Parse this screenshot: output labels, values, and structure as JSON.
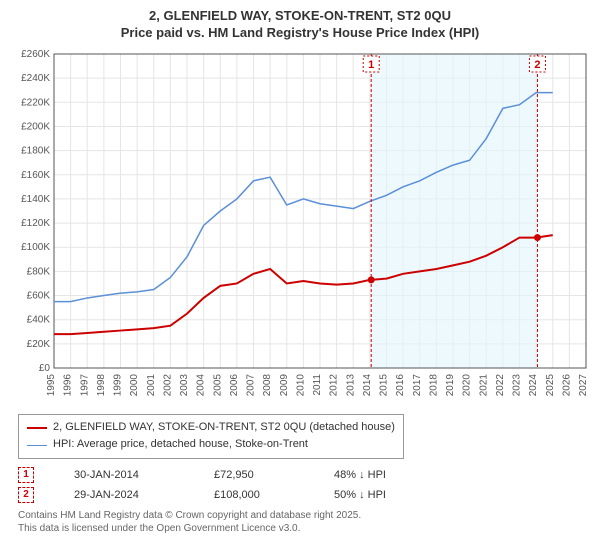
{
  "title_line1": "2, GLENFIELD WAY, STOKE-ON-TRENT, ST2 0QU",
  "title_line2": "Price paid vs. HM Land Registry's House Price Index (HPI)",
  "chart": {
    "background_color": "#ffffff",
    "shaded_color": "#E3F5FE",
    "grid_color": "#e5e5e5",
    "axis_color": "#555555",
    "ylim": [
      0,
      260000
    ],
    "ytick_step": 20000,
    "ytick_prefix": "£",
    "ytick_suffix": "K",
    "xlim": [
      1995,
      2027
    ],
    "xtick_step": 1,
    "series": {
      "price_paid": {
        "label": "2, GLENFIELD WAY, STOKE-ON-TRENT, ST2 0QU (detached house)",
        "color": "#cc0000",
        "line_width": 2,
        "data": [
          [
            1995,
            28000
          ],
          [
            1996,
            28000
          ],
          [
            1997,
            29000
          ],
          [
            1998,
            30000
          ],
          [
            1999,
            31000
          ],
          [
            2000,
            32000
          ],
          [
            2001,
            33000
          ],
          [
            2002,
            35000
          ],
          [
            2003,
            45000
          ],
          [
            2004,
            58000
          ],
          [
            2005,
            68000
          ],
          [
            2006,
            70000
          ],
          [
            2007,
            78000
          ],
          [
            2008,
            82000
          ],
          [
            2009,
            70000
          ],
          [
            2010,
            72000
          ],
          [
            2011,
            70000
          ],
          [
            2012,
            69000
          ],
          [
            2013,
            70000
          ],
          [
            2014,
            72950
          ],
          [
            2015,
            74000
          ],
          [
            2016,
            78000
          ],
          [
            2017,
            80000
          ],
          [
            2018,
            82000
          ],
          [
            2019,
            85000
          ],
          [
            2020,
            88000
          ],
          [
            2021,
            93000
          ],
          [
            2022,
            100000
          ],
          [
            2023,
            108000
          ],
          [
            2024,
            108000
          ],
          [
            2025,
            110000
          ]
        ]
      },
      "hpi": {
        "label": "HPI: Average price, detached house, Stoke-on-Trent",
        "color": "#5b8fd6",
        "line_width": 1.5,
        "data": [
          [
            1995,
            55000
          ],
          [
            1996,
            55000
          ],
          [
            1997,
            58000
          ],
          [
            1998,
            60000
          ],
          [
            1999,
            62000
          ],
          [
            2000,
            63000
          ],
          [
            2001,
            65000
          ],
          [
            2002,
            75000
          ],
          [
            2003,
            92000
          ],
          [
            2004,
            118000
          ],
          [
            2005,
            130000
          ],
          [
            2006,
            140000
          ],
          [
            2007,
            155000
          ],
          [
            2008,
            158000
          ],
          [
            2009,
            135000
          ],
          [
            2010,
            140000
          ],
          [
            2011,
            136000
          ],
          [
            2012,
            134000
          ],
          [
            2013,
            132000
          ],
          [
            2014,
            138000
          ],
          [
            2015,
            143000
          ],
          [
            2016,
            150000
          ],
          [
            2017,
            155000
          ],
          [
            2018,
            162000
          ],
          [
            2019,
            168000
          ],
          [
            2020,
            172000
          ],
          [
            2021,
            190000
          ],
          [
            2022,
            215000
          ],
          [
            2023,
            218000
          ],
          [
            2024,
            228000
          ],
          [
            2025,
            228000
          ]
        ]
      }
    },
    "markers": [
      {
        "n": "1",
        "year": 2014.08,
        "price": 72950,
        "color": "#cc0000"
      },
      {
        "n": "2",
        "year": 2024.08,
        "price": 108000,
        "color": "#cc0000"
      }
    ]
  },
  "sales": [
    {
      "n": "1",
      "date": "30-JAN-2014",
      "price": "£72,950",
      "diff": "48% ↓ HPI"
    },
    {
      "n": "2",
      "date": "29-JAN-2024",
      "price": "£108,000",
      "diff": "50% ↓ HPI"
    }
  ],
  "footer_line1": "Contains HM Land Registry data © Crown copyright and database right 2025.",
  "footer_line2": "This data is licensed under the Open Government Licence v3.0."
}
